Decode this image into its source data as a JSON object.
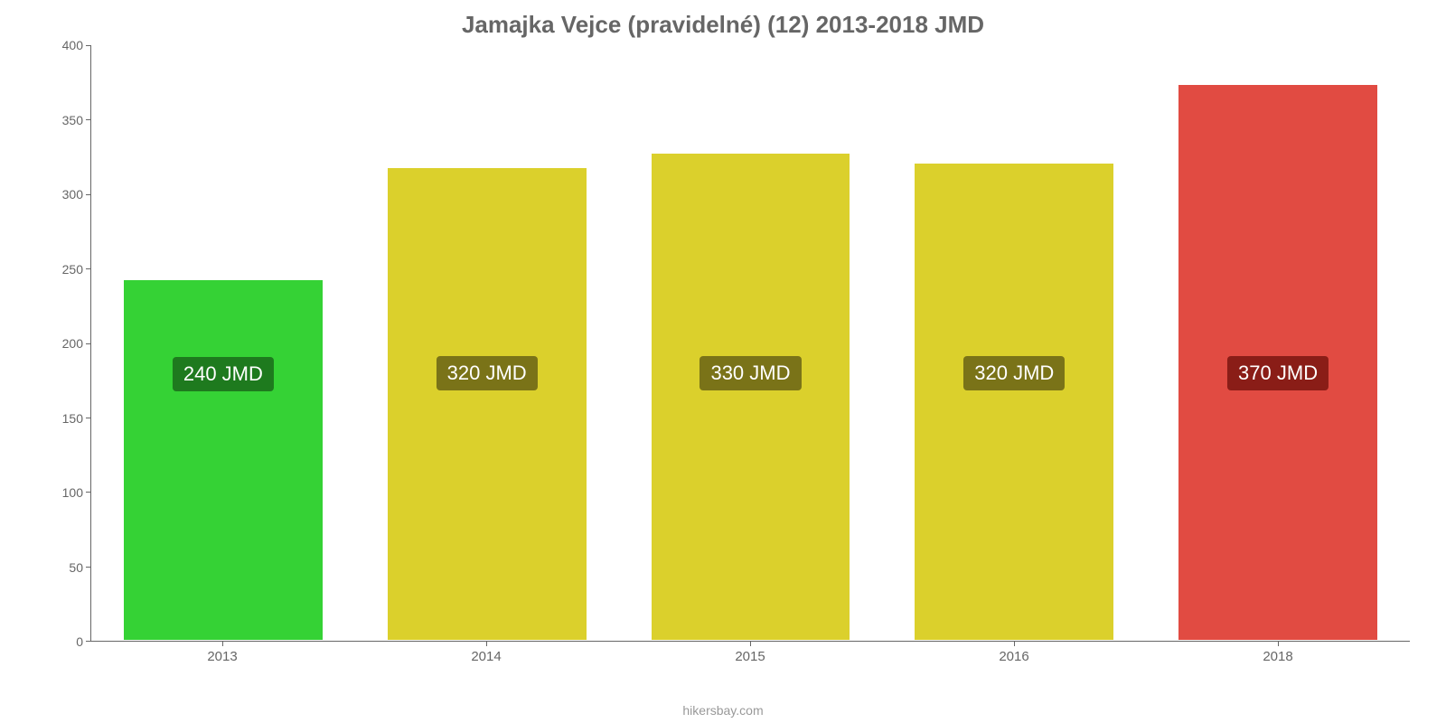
{
  "chart": {
    "type": "bar",
    "title": "Jamajka Vejce (pravidelné) (12) 2013-2018 JMD",
    "title_color": "#666666",
    "title_fontsize": 26,
    "background_color": "#ffffff",
    "axis_color": "#666666",
    "tick_label_color": "#666666",
    "tick_fontsize": 14,
    "attribution": "hikersbay.com",
    "attribution_color": "#999999",
    "ylim": [
      0,
      400
    ],
    "ytick_step": 50,
    "yticks": [
      {
        "value": 0,
        "label": "0"
      },
      {
        "value": 50,
        "label": "50"
      },
      {
        "value": 100,
        "label": "100"
      },
      {
        "value": 150,
        "label": "150"
      },
      {
        "value": 200,
        "label": "200"
      },
      {
        "value": 250,
        "label": "250"
      },
      {
        "value": 300,
        "label": "300"
      },
      {
        "value": 350,
        "label": "350"
      },
      {
        "value": 400,
        "label": "400"
      }
    ],
    "bar_width_pct": 76,
    "bar_border_color": "#ffffff",
    "label_fontsize": 22,
    "label_text_color": "#ffffff",
    "label_radius": 4,
    "label_y_value": 180,
    "categories": [
      "2013",
      "2014",
      "2015",
      "2016",
      "2018"
    ],
    "series": [
      {
        "category": "2013",
        "value": 243,
        "label": "240 JMD",
        "bar_color": "#35d235",
        "label_bg": "#1e7a1e"
      },
      {
        "category": "2014",
        "value": 318,
        "label": "320 JMD",
        "bar_color": "#dbd02c",
        "label_bg": "#7a7318"
      },
      {
        "category": "2015",
        "value": 328,
        "label": "330 JMD",
        "bar_color": "#dbd02c",
        "label_bg": "#7a7318"
      },
      {
        "category": "2016",
        "value": 321,
        "label": "320 JMD",
        "bar_color": "#dbd02c",
        "label_bg": "#7a7318"
      },
      {
        "category": "2018",
        "value": 374,
        "label": "370 JMD",
        "bar_color": "#e14b42",
        "label_bg": "#8a1d17"
      }
    ]
  }
}
